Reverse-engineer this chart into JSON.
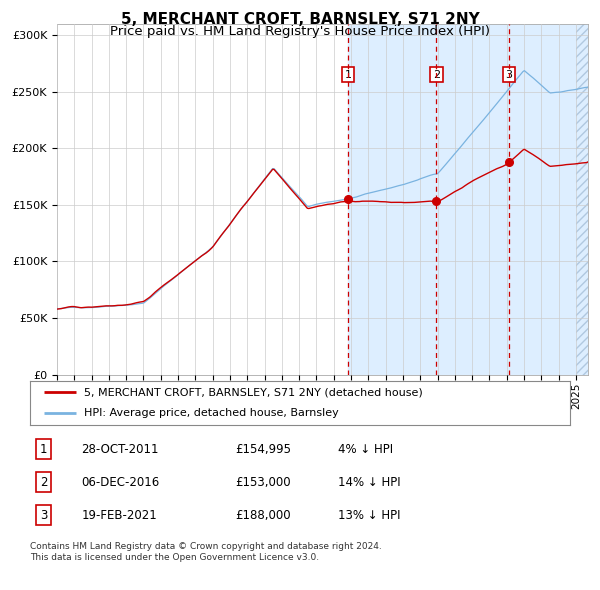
{
  "title": "5, MERCHANT CROFT, BARNSLEY, S71 2NY",
  "subtitle": "Price paid vs. HM Land Registry's House Price Index (HPI)",
  "legend_property": "5, MERCHANT CROFT, BARNSLEY, S71 2NY (detached house)",
  "legend_hpi": "HPI: Average price, detached house, Barnsley",
  "footnote_line1": "Contains HM Land Registry data © Crown copyright and database right 2024.",
  "footnote_line2": "This data is licensed under the Open Government Licence v3.0.",
  "transactions": [
    {
      "num": 1,
      "date": "28-OCT-2011",
      "price": "£154,995",
      "pct": "4%",
      "dir": "↓"
    },
    {
      "num": 2,
      "date": "06-DEC-2016",
      "price": "£153,000",
      "pct": "14%",
      "dir": "↓"
    },
    {
      "num": 3,
      "date": "19-FEB-2021",
      "price": "£188,000",
      "pct": "13%",
      "dir": "↓"
    }
  ],
  "transaction_dates_mpl": [
    2011.83,
    2016.93,
    2021.13
  ],
  "transaction_prices": [
    154995,
    153000,
    188000
  ],
  "hpi_color": "#7ab3e0",
  "property_color": "#cc0000",
  "background_color": "#ffffff",
  "shaded_region_color": "#ddeeff",
  "grid_color": "#cccccc",
  "dashed_line_color": "#cc0000",
  "ylim": [
    0,
    310000
  ],
  "yticks": [
    0,
    50000,
    100000,
    150000,
    200000,
    250000,
    300000
  ],
  "xlim_start": 1995.0,
  "xlim_end": 2025.7,
  "title_fontsize": 11,
  "subtitle_fontsize": 9.5,
  "tick_fontsize": 7.5,
  "legend_fontsize": 8,
  "table_fontsize": 8.5
}
